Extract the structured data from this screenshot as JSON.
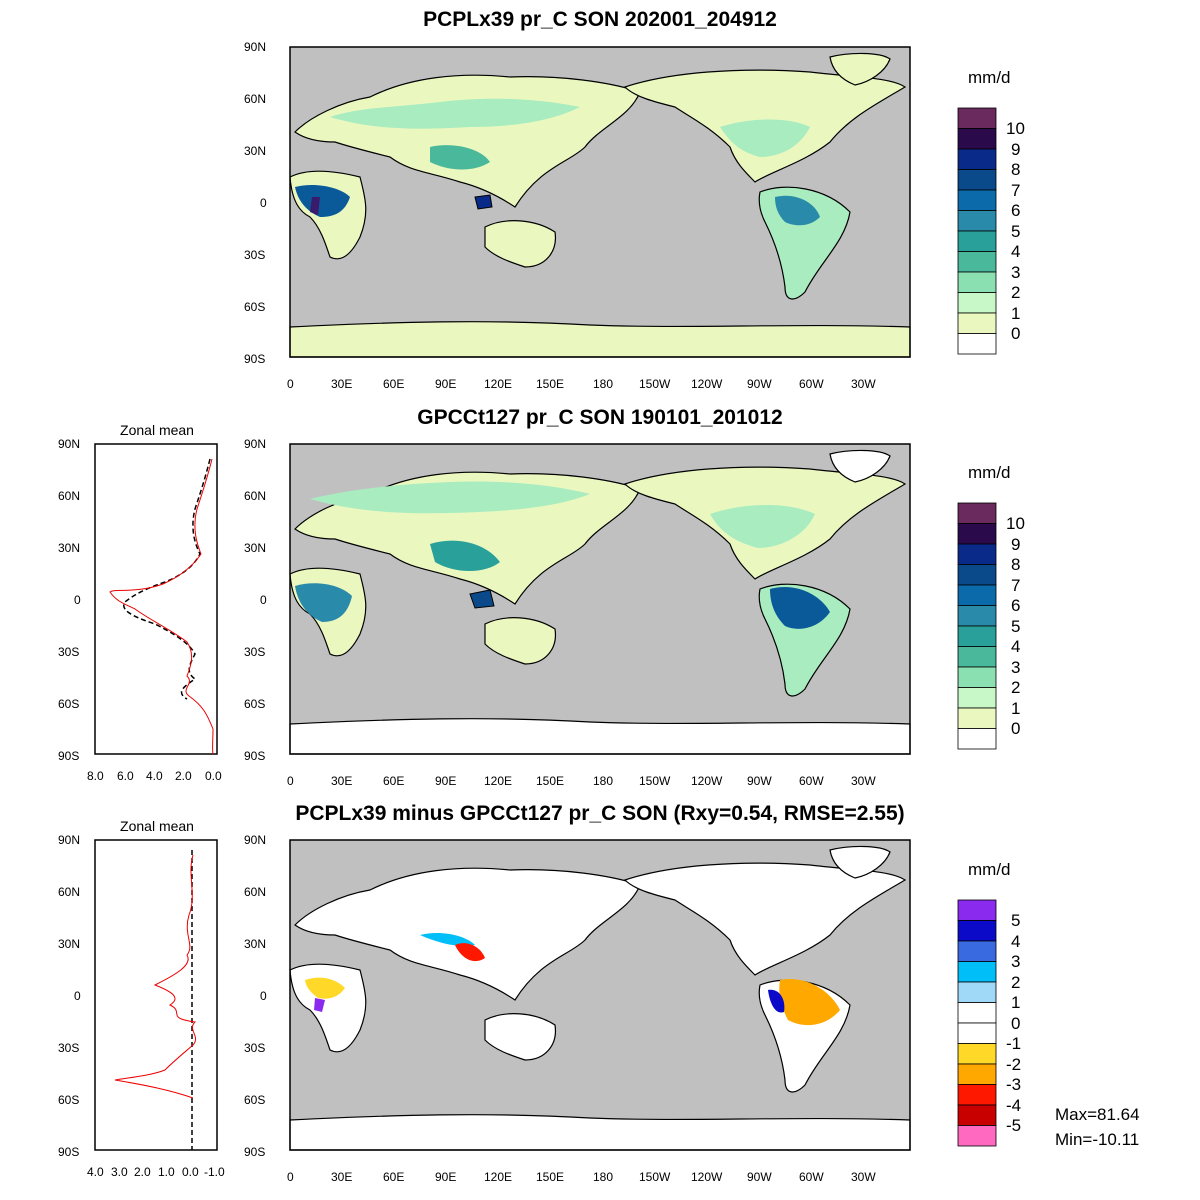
{
  "panels": [
    {
      "title": "PCPLx39 pr_C SON 202001_204912",
      "lat_labels": [
        "90N",
        "60N",
        "30N",
        "0",
        "30S",
        "60S",
        "90S"
      ],
      "lon_labels": [
        "0",
        "30E",
        "60E",
        "90E",
        "120E",
        "150E",
        "180",
        "150W",
        "120W",
        "90W",
        "60W",
        "30W"
      ],
      "colorbar": {
        "unit": "mm/d",
        "labels": [
          "10",
          "9",
          "8",
          "7",
          "6",
          "5",
          "4",
          "3",
          "2",
          "1",
          "0"
        ],
        "colors": [
          "#6a2a5e",
          "#2a0a4a",
          "#0a2a8a",
          "#0a4a8a",
          "#0a6aaa",
          "#2a8aaa",
          "#2aa09a",
          "#4ab89a",
          "#8ae0b0",
          "#c8f8c8",
          "#eaf8c0",
          "#ffffff"
        ]
      },
      "colors": {
        "ocean": "#c0c0c0",
        "land_low": "#eaf8c0",
        "land_mid": "#a8ecc0",
        "land_high": "#3aaa9a",
        "land_wet": "#0a5a9a",
        "land_peak": "#3a1a6a"
      }
    },
    {
      "title": "GPCCt127 pr_C SON 190101_201012",
      "lat_labels": [
        "90N",
        "60N",
        "30N",
        "0",
        "30S",
        "60S",
        "90S"
      ],
      "lon_labels": [
        "0",
        "30E",
        "60E",
        "90E",
        "120E",
        "150E",
        "180",
        "150W",
        "120W",
        "90W",
        "60W",
        "30W"
      ],
      "colorbar": {
        "unit": "mm/d",
        "labels": [
          "10",
          "9",
          "8",
          "7",
          "6",
          "5",
          "4",
          "3",
          "2",
          "1",
          "0"
        ],
        "colors": [
          "#6a2a5e",
          "#2a0a4a",
          "#0a2a8a",
          "#0a4a8a",
          "#0a6aaa",
          "#2a8aaa",
          "#2aa09a",
          "#4ab89a",
          "#8ae0b0",
          "#c8f8c8",
          "#eaf8c0",
          "#ffffff"
        ]
      },
      "zonal": {
        "title": "Zonal mean",
        "lat_labels": [
          "90N",
          "60N",
          "30N",
          "0",
          "30S",
          "60S",
          "90S"
        ],
        "x_labels": [
          "8.0",
          "6.0",
          "4.0",
          "2.0",
          "0.0"
        ]
      }
    },
    {
      "title": "PCPLx39 minus GPCCt127 pr_C SON (Rxy=0.54, RMSE=2.55)",
      "lat_labels": [
        "90N",
        "60N",
        "30N",
        "0",
        "30S",
        "60S",
        "90S"
      ],
      "lon_labels": [
        "0",
        "30E",
        "60E",
        "90E",
        "120E",
        "150E",
        "180",
        "150W",
        "120W",
        "90W",
        "60W",
        "30W"
      ],
      "colorbar": {
        "unit": "mm/d",
        "labels": [
          "5",
          "4",
          "3",
          "2",
          "1",
          "0",
          "-1",
          "-2",
          "-3",
          "-4",
          "-5"
        ],
        "colors": [
          "#8a2aee",
          "#0a0ac8",
          "#3a6ae0",
          "#00bef8",
          "#a0d8f8",
          "#ffffff",
          "#ffffff",
          "#ffd828",
          "#ffa800",
          "#ff1800",
          "#c80000",
          "#ff6ac0"
        ]
      },
      "zonal": {
        "title": "Zonal mean",
        "lat_labels": [
          "90N",
          "60N",
          "30N",
          "0",
          "30S",
          "60S",
          "90S"
        ],
        "x_labels": [
          "4.0",
          "3.0",
          "2.0",
          "1.0",
          "0.0",
          "-1.0"
        ]
      },
      "stats": {
        "max": "Max=81.64",
        "min": "Min=-10.11"
      }
    }
  ]
}
